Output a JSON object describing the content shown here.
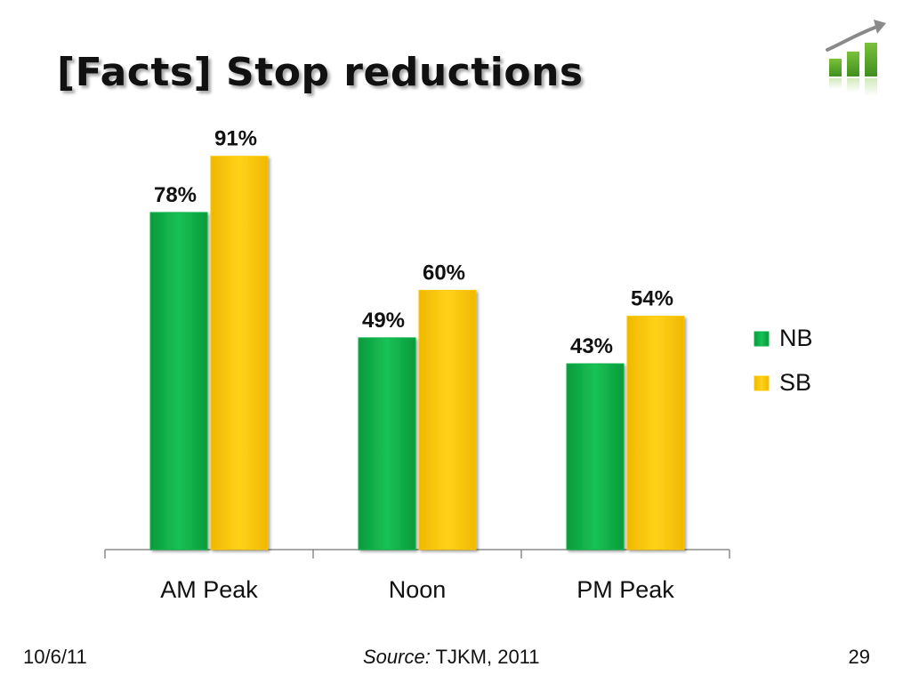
{
  "slide": {
    "title": "[Facts] Stop reductions",
    "footer_date": "10/6/11",
    "footer_source_label": "Source:",
    "footer_source_text": " TJKM, 2011",
    "page_number": "29"
  },
  "logo": {
    "icon": "rising-bar-chart-icon"
  },
  "colors": {
    "nb": "#10b54a",
    "sb": "#fcc800"
  },
  "chart_data": {
    "type": "bar",
    "title": "",
    "xlabel": "",
    "ylabel": "",
    "categories": [
      "AM Peak",
      "Noon",
      "PM Peak"
    ],
    "ylim": [
      0,
      100
    ],
    "grid": false,
    "legend": "right",
    "value_suffix": "%",
    "series": [
      {
        "name": "NB",
        "values": [
          78,
          49,
          43
        ]
      },
      {
        "name": "SB",
        "values": [
          91,
          60,
          54
        ]
      }
    ]
  }
}
